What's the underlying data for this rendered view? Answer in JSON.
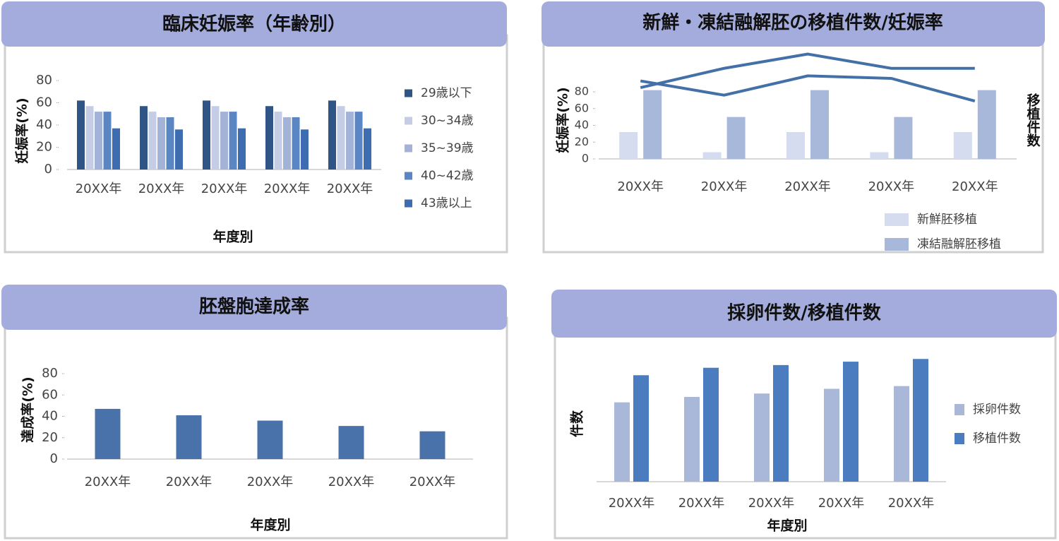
{
  "chart_data": [
    {
      "type": "bar",
      "title": "臨床妊娠率（年齢別）",
      "xlabel": "年度別",
      "ylabel": "妊娠率(%)",
      "categories": [
        "20XX年",
        "20XX年",
        "20XX年",
        "20XX年",
        "20XX年"
      ],
      "series": [
        {
          "name": "29歳以下",
          "color": "#2f5587",
          "values": [
            62,
            57,
            62,
            57,
            62
          ]
        },
        {
          "name": "30~34歳",
          "color": "#c5cde6",
          "values": [
            57,
            52,
            57,
            52,
            57
          ]
        },
        {
          "name": "35~39歳",
          "color": "#a3b3d8",
          "values": [
            52,
            47,
            52,
            47,
            52
          ]
        },
        {
          "name": "40~42歳",
          "color": "#5b86c4",
          "values": [
            52,
            47,
            52,
            47,
            52
          ]
        },
        {
          "name": "43歳以上",
          "color": "#3d6db0",
          "values": [
            37,
            36,
            37,
            36,
            37
          ]
        }
      ],
      "ylim": [
        0,
        80
      ],
      "yticks": [
        0,
        20,
        40,
        60,
        80
      ]
    },
    {
      "type": "combo",
      "title": "新鮮・凍結融解胚の移植件数/妊娠率",
      "ylabel": "妊娠率(%)",
      "y2label": "移植件数",
      "categories": [
        "20XX年",
        "20XX年",
        "20XX年",
        "20XX年",
        "20XX年"
      ],
      "series": [
        {
          "name": "新鮮胚移植",
          "type": "bar",
          "color": "#d6dcef",
          "values": [
            32,
            8,
            32,
            8,
            32
          ]
        },
        {
          "name": "凍結融解胚移植",
          "type": "bar",
          "color": "#a8b8db",
          "values": [
            82,
            50,
            82,
            50,
            82
          ]
        },
        {
          "type": "line",
          "axis": "y2",
          "color": "#4470a8",
          "values": [
            85,
            108,
            125,
            108,
            108
          ]
        },
        {
          "type": "line",
          "axis": "y2",
          "color": "#4470a8",
          "values": [
            93,
            76,
            99,
            96,
            69
          ]
        }
      ],
      "ylim": [
        0,
        80
      ],
      "yticks": [
        0,
        20,
        40,
        60,
        80
      ],
      "y2lim": [
        0,
        80
      ]
    },
    {
      "type": "bar",
      "title": "胚盤胞達成率",
      "xlabel": "年度別",
      "ylabel": "達成率(%)",
      "categories": [
        "20XX年",
        "20XX年",
        "20XX年",
        "20XX年",
        "20XX年"
      ],
      "series": [
        {
          "color": "#4a72aa",
          "values": [
            47,
            41,
            36,
            31,
            26
          ]
        }
      ],
      "ylim": [
        0,
        80
      ],
      "yticks": [
        0,
        20,
        40,
        60,
        80
      ]
    },
    {
      "type": "bar",
      "title": "採卵件数/移植件数",
      "xlabel": "年度別",
      "ylabel": "件数",
      "categories": [
        "20XX年",
        "20XX年",
        "20XX年",
        "20XX年",
        "20XX年"
      ],
      "series": [
        {
          "name": "採卵件数",
          "color": "#a9b8d9",
          "values": [
            117,
            125,
            130,
            137,
            141
          ]
        },
        {
          "name": "移植件数",
          "color": "#4b7cc0",
          "values": [
            157,
            168,
            172,
            177,
            181
          ]
        }
      ],
      "ylim": [
        0,
        200
      ]
    }
  ]
}
